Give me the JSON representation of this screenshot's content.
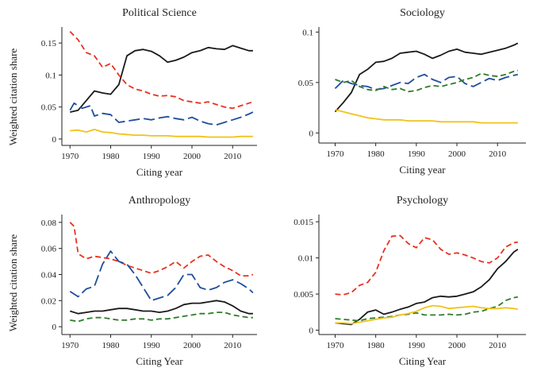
{
  "figure": {
    "ylabel_shared": "Weighted citation share"
  },
  "chart_data": [
    {
      "type": "line",
      "title": "Political Science",
      "xlabel": "Citing year",
      "ylabel": "Weighted citation share",
      "xlim": [
        1968,
        2016
      ],
      "ylim": [
        -0.01,
        0.175
      ],
      "xticks": [
        1970,
        1980,
        1990,
        2000,
        2010
      ],
      "yticks": [
        0,
        0.05,
        0.1,
        0.15
      ],
      "ytick_labels": [
        "0",
        "0.05",
        "0.1",
        "0.15"
      ],
      "grid": false,
      "series": [
        {
          "color": "#1a1a1a",
          "dash": "solid",
          "x": [
            1970,
            1972,
            1974,
            1976,
            1978,
            1980,
            1982,
            1984,
            1986,
            1988,
            1990,
            1992,
            1994,
            1996,
            1998,
            2000,
            2002,
            2004,
            2006,
            2008,
            2010,
            2012,
            2014,
            2015
          ],
          "y": [
            0.042,
            0.045,
            0.06,
            0.075,
            0.072,
            0.07,
            0.085,
            0.13,
            0.138,
            0.14,
            0.137,
            0.13,
            0.12,
            0.123,
            0.128,
            0.135,
            0.138,
            0.143,
            0.141,
            0.14,
            0.146,
            0.142,
            0.138,
            0.138
          ]
        },
        {
          "color": "#e8321f",
          "dash": "dashed",
          "x": [
            1970,
            1972,
            1974,
            1976,
            1978,
            1980,
            1982,
            1984,
            1986,
            1988,
            1990,
            1992,
            1994,
            1996,
            1998,
            2000,
            2002,
            2004,
            2006,
            2008,
            2010,
            2012,
            2014,
            2015
          ],
          "y": [
            0.168,
            0.155,
            0.135,
            0.13,
            0.112,
            0.118,
            0.1,
            0.085,
            0.078,
            0.075,
            0.07,
            0.067,
            0.068,
            0.066,
            0.06,
            0.058,
            0.056,
            0.058,
            0.054,
            0.05,
            0.048,
            0.052,
            0.056,
            0.058
          ]
        },
        {
          "color": "#1f4e9c",
          "dash": "longdash",
          "x": [
            1970,
            1971,
            1973,
            1975,
            1976,
            1978,
            1980,
            1982,
            1984,
            1986,
            1988,
            1990,
            1992,
            1994,
            1996,
            1998,
            2000,
            2002,
            2004,
            2006,
            2008,
            2010,
            2012,
            2014,
            2015
          ],
          "y": [
            0.045,
            0.056,
            0.048,
            0.052,
            0.036,
            0.04,
            0.038,
            0.026,
            0.028,
            0.03,
            0.032,
            0.03,
            0.033,
            0.035,
            0.032,
            0.03,
            0.034,
            0.028,
            0.024,
            0.022,
            0.026,
            0.03,
            0.034,
            0.039,
            0.042
          ]
        },
        {
          "color": "#f2c21b",
          "dash": "solid",
          "x": [
            1970,
            1972,
            1974,
            1976,
            1978,
            1980,
            1982,
            1984,
            1986,
            1988,
            1990,
            1992,
            1994,
            1996,
            1998,
            2000,
            2002,
            2004,
            2006,
            2008,
            2010,
            2012,
            2014,
            2015
          ],
          "y": [
            0.013,
            0.014,
            0.011,
            0.015,
            0.011,
            0.01,
            0.008,
            0.007,
            0.006,
            0.006,
            0.005,
            0.005,
            0.005,
            0.004,
            0.004,
            0.004,
            0.004,
            0.003,
            0.003,
            0.003,
            0.003,
            0.004,
            0.004,
            0.004
          ]
        }
      ]
    },
    {
      "type": "line",
      "title": "Sociology",
      "xlabel": "Citing year",
      "ylabel": "",
      "xlim": [
        1966,
        2017
      ],
      "ylim": [
        -0.01,
        0.105
      ],
      "xticks": [
        1970,
        1980,
        1990,
        2000,
        2010
      ],
      "yticks": [
        0,
        0.05,
        0.1
      ],
      "ytick_labels": [
        "0",
        "0.05",
        "0.1"
      ],
      "grid": false,
      "series": [
        {
          "color": "#1a1a1a",
          "dash": "solid",
          "x": [
            1970,
            1972,
            1974,
            1976,
            1978,
            1980,
            1982,
            1984,
            1986,
            1988,
            1990,
            1992,
            1994,
            1996,
            1998,
            2000,
            2002,
            2004,
            2006,
            2008,
            2010,
            2012,
            2014,
            2015
          ],
          "y": [
            0.021,
            0.03,
            0.04,
            0.058,
            0.063,
            0.07,
            0.071,
            0.074,
            0.079,
            0.08,
            0.081,
            0.078,
            0.074,
            0.077,
            0.081,
            0.083,
            0.08,
            0.079,
            0.078,
            0.08,
            0.082,
            0.084,
            0.087,
            0.089
          ]
        },
        {
          "color": "#1f4e9c",
          "dash": "longdash",
          "x": [
            1970,
            1972,
            1974,
            1976,
            1978,
            1980,
            1982,
            1984,
            1986,
            1988,
            1990,
            1992,
            1994,
            1996,
            1998,
            2000,
            2002,
            2004,
            2006,
            2008,
            2010,
            2012,
            2014,
            2015
          ],
          "y": [
            0.044,
            0.052,
            0.049,
            0.047,
            0.046,
            0.043,
            0.044,
            0.047,
            0.05,
            0.049,
            0.055,
            0.058,
            0.053,
            0.05,
            0.055,
            0.056,
            0.049,
            0.046,
            0.05,
            0.054,
            0.052,
            0.055,
            0.057,
            0.058
          ]
        },
        {
          "color": "#2e7d2a",
          "dash": "dashed",
          "x": [
            1970,
            1972,
            1974,
            1976,
            1978,
            1980,
            1982,
            1984,
            1986,
            1988,
            1990,
            1992,
            1994,
            1996,
            1998,
            2000,
            2002,
            2004,
            2006,
            2008,
            2010,
            2012,
            2014,
            2015
          ],
          "y": [
            0.053,
            0.05,
            0.052,
            0.046,
            0.043,
            0.042,
            0.046,
            0.043,
            0.044,
            0.041,
            0.042,
            0.045,
            0.047,
            0.046,
            0.048,
            0.05,
            0.053,
            0.055,
            0.059,
            0.057,
            0.056,
            0.058,
            0.061,
            0.062
          ]
        },
        {
          "color": "#f2c21b",
          "dash": "solid",
          "x": [
            1970,
            1972,
            1974,
            1976,
            1978,
            1980,
            1982,
            1984,
            1986,
            1988,
            1990,
            1992,
            1994,
            1996,
            1998,
            2000,
            2002,
            2004,
            2006,
            2008,
            2010,
            2012,
            2014,
            2015
          ],
          "y": [
            0.023,
            0.021,
            0.019,
            0.017,
            0.015,
            0.014,
            0.013,
            0.013,
            0.013,
            0.012,
            0.012,
            0.012,
            0.012,
            0.011,
            0.011,
            0.011,
            0.011,
            0.011,
            0.01,
            0.01,
            0.01,
            0.01,
            0.01,
            0.01
          ]
        }
      ]
    },
    {
      "type": "line",
      "title": "Anthropology",
      "xlabel": "Citing Year",
      "ylabel": "Weighted citation share",
      "xlim": [
        1968,
        2016
      ],
      "ylim": [
        -0.006,
        0.086
      ],
      "xticks": [
        1970,
        1980,
        1990,
        2000,
        2010
      ],
      "yticks": [
        0,
        0.02,
        0.04,
        0.06,
        0.08
      ],
      "ytick_labels": [
        "0",
        "0.02",
        "0.04",
        "0.06",
        "0.08"
      ],
      "grid": false,
      "series": [
        {
          "color": "#e8321f",
          "dash": "dashed",
          "x": [
            1970,
            1971,
            1972,
            1974,
            1976,
            1978,
            1980,
            1982,
            1984,
            1986,
            1988,
            1990,
            1992,
            1994,
            1996,
            1998,
            2000,
            2002,
            2004,
            2006,
            2008,
            2010,
            2012,
            2014,
            2015
          ],
          "y": [
            0.08,
            0.077,
            0.056,
            0.052,
            0.054,
            0.053,
            0.052,
            0.05,
            0.047,
            0.045,
            0.043,
            0.041,
            0.043,
            0.046,
            0.05,
            0.045,
            0.05,
            0.054,
            0.055,
            0.05,
            0.046,
            0.043,
            0.039,
            0.039,
            0.04
          ]
        },
        {
          "color": "#1f4e9c",
          "dash": "longdash",
          "x": [
            1970,
            1972,
            1974,
            1976,
            1978,
            1980,
            1982,
            1984,
            1986,
            1988,
            1990,
            1992,
            1994,
            1996,
            1998,
            2000,
            2002,
            2004,
            2006,
            2008,
            2010,
            2012,
            2014,
            2015
          ],
          "y": [
            0.027,
            0.023,
            0.029,
            0.031,
            0.048,
            0.058,
            0.05,
            0.048,
            0.04,
            0.03,
            0.02,
            0.022,
            0.024,
            0.03,
            0.04,
            0.04,
            0.03,
            0.028,
            0.03,
            0.034,
            0.036,
            0.033,
            0.029,
            0.026
          ]
        },
        {
          "color": "#1a1a1a",
          "dash": "solid",
          "x": [
            1970,
            1972,
            1974,
            1976,
            1978,
            1980,
            1982,
            1984,
            1986,
            1988,
            1990,
            1992,
            1994,
            1996,
            1998,
            2000,
            2002,
            2004,
            2006,
            2008,
            2010,
            2012,
            2014,
            2015
          ],
          "y": [
            0.012,
            0.01,
            0.011,
            0.012,
            0.012,
            0.013,
            0.014,
            0.014,
            0.013,
            0.012,
            0.012,
            0.011,
            0.012,
            0.014,
            0.017,
            0.018,
            0.018,
            0.019,
            0.02,
            0.019,
            0.016,
            0.012,
            0.01,
            0.01
          ]
        },
        {
          "color": "#2e7d2a",
          "dash": "dashed",
          "x": [
            1970,
            1972,
            1974,
            1976,
            1978,
            1980,
            1982,
            1984,
            1986,
            1988,
            1990,
            1992,
            1994,
            1996,
            1998,
            2000,
            2002,
            2004,
            2006,
            2008,
            2010,
            2012,
            2014,
            2015
          ],
          "y": [
            0.005,
            0.004,
            0.006,
            0.007,
            0.007,
            0.006,
            0.005,
            0.005,
            0.006,
            0.006,
            0.005,
            0.006,
            0.006,
            0.007,
            0.008,
            0.009,
            0.01,
            0.01,
            0.011,
            0.011,
            0.009,
            0.008,
            0.007,
            0.007
          ]
        }
      ]
    },
    {
      "type": "line",
      "title": "Psychology",
      "xlabel": "Citing Year",
      "ylabel": "",
      "xlim": [
        1966,
        2017
      ],
      "ylim": [
        -0.0006,
        0.016
      ],
      "xticks": [
        1970,
        1980,
        1990,
        2000,
        2010
      ],
      "yticks": [
        0,
        0.005,
        0.01,
        0.015
      ],
      "ytick_labels": [
        "0",
        "0.005",
        "0.01",
        "0.015"
      ],
      "grid": false,
      "series": [
        {
          "color": "#e8321f",
          "dash": "dashed",
          "x": [
            1970,
            1972,
            1974,
            1976,
            1978,
            1980,
            1982,
            1984,
            1986,
            1988,
            1990,
            1992,
            1994,
            1996,
            1998,
            2000,
            2002,
            2004,
            2006,
            2008,
            2010,
            2012,
            2014,
            2015
          ],
          "y": [
            0.005,
            0.0049,
            0.0052,
            0.0062,
            0.0066,
            0.008,
            0.011,
            0.013,
            0.0131,
            0.012,
            0.0114,
            0.0128,
            0.0125,
            0.0112,
            0.0105,
            0.0107,
            0.0104,
            0.01,
            0.0095,
            0.0093,
            0.01,
            0.0115,
            0.0121,
            0.0122
          ]
        },
        {
          "color": "#1a1a1a",
          "dash": "solid",
          "x": [
            1970,
            1972,
            1974,
            1976,
            1978,
            1980,
            1982,
            1984,
            1986,
            1988,
            1990,
            1992,
            1994,
            1996,
            1998,
            2000,
            2002,
            2004,
            2006,
            2008,
            2010,
            2012,
            2014,
            2015
          ],
          "y": [
            0.001,
            0.0009,
            0.0008,
            0.0015,
            0.0025,
            0.0028,
            0.0022,
            0.0025,
            0.0029,
            0.0032,
            0.0037,
            0.0039,
            0.0045,
            0.0047,
            0.0046,
            0.0047,
            0.005,
            0.0053,
            0.006,
            0.007,
            0.0085,
            0.0095,
            0.0108,
            0.0112
          ]
        },
        {
          "color": "#2e7d2a",
          "dash": "dashed",
          "x": [
            1970,
            1972,
            1974,
            1976,
            1978,
            1980,
            1982,
            1984,
            1986,
            1988,
            1990,
            1992,
            1994,
            1996,
            1998,
            2000,
            2002,
            2004,
            2006,
            2008,
            2010,
            2012,
            2014,
            2015
          ],
          "y": [
            0.0016,
            0.0015,
            0.0014,
            0.0013,
            0.0016,
            0.0017,
            0.0018,
            0.0019,
            0.0021,
            0.0022,
            0.0024,
            0.0021,
            0.0021,
            0.0021,
            0.0022,
            0.0021,
            0.0022,
            0.0025,
            0.0026,
            0.003,
            0.0033,
            0.0041,
            0.0045,
            0.0046
          ]
        },
        {
          "color": "#f2c21b",
          "dash": "solid",
          "x": [
            1970,
            1972,
            1974,
            1976,
            1978,
            1980,
            1982,
            1984,
            1986,
            1988,
            1990,
            1992,
            1994,
            1996,
            1998,
            2000,
            2002,
            2004,
            2006,
            2008,
            2010,
            2012,
            2014,
            2015
          ],
          "y": [
            0.001,
            0.001,
            0.0009,
            0.0011,
            0.0013,
            0.0015,
            0.0017,
            0.0018,
            0.0021,
            0.0023,
            0.0026,
            0.0031,
            0.0034,
            0.0033,
            0.003,
            0.0031,
            0.0032,
            0.0033,
            0.0031,
            0.003,
            0.003,
            0.0031,
            0.003,
            0.0029
          ]
        }
      ]
    }
  ]
}
